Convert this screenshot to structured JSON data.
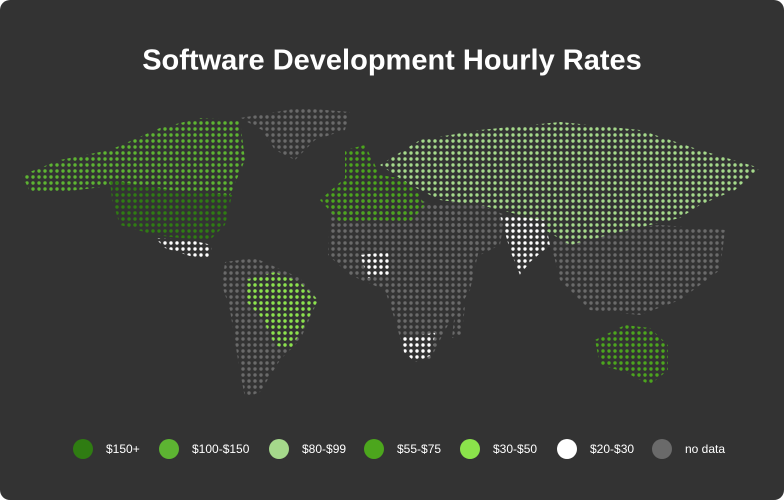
{
  "title": "Software Development Hourly Rates",
  "legend": [
    {
      "label": "$150+",
      "color": "#2f7c12"
    },
    {
      "label": "$100-$150",
      "color": "#5db432"
    },
    {
      "label": "$80-$99",
      "color": "#a5d98b"
    },
    {
      "label": "$55-$75",
      "color": "#4ca61d"
    },
    {
      "label": "$30-$50",
      "color": "#8be34b"
    },
    {
      "label": "$20-$30",
      "color": "#ffffff"
    },
    {
      "label": "no data",
      "color": "#6a6a6a"
    }
  ]
}
